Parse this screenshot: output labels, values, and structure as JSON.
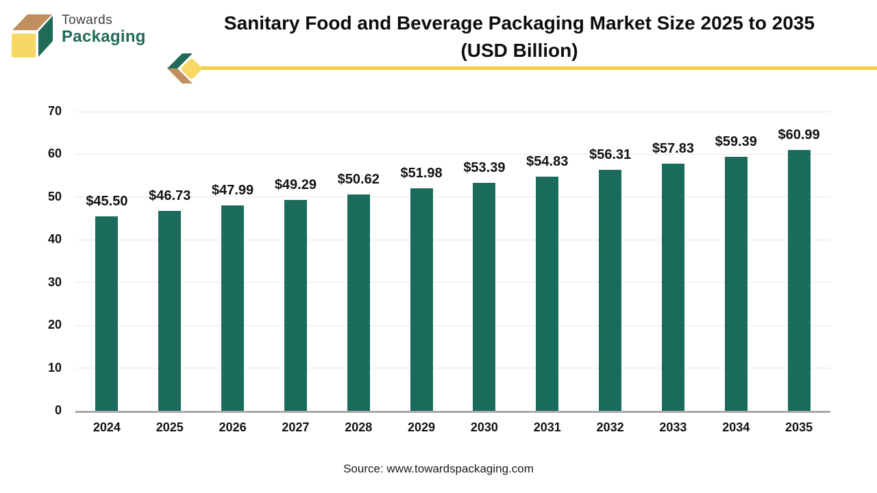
{
  "logo": {
    "line1": "Towards",
    "line2": "Packaging"
  },
  "header": {
    "title_line1": "Sanitary Food and Beverage Packaging Market Size 2025 to 2035",
    "title_line2": "(USD Billion)"
  },
  "footer": {
    "source": "Source: www.towardspackaging.com"
  },
  "colors": {
    "bar": "#1a6b5c",
    "accent_yellow": "#f5ce47",
    "logo_green": "#1f6b57",
    "logo_tan": "#c18e5f",
    "logo_yellow": "#f8d765",
    "grid": "#e8e8e8",
    "axis_line": "#a9a9a9",
    "text": "#111111"
  },
  "chart_data": {
    "type": "bar",
    "title": "Sanitary Food and Beverage Packaging Market Size 2025 to 2035 (USD Billion)",
    "categories": [
      "2024",
      "2025",
      "2026",
      "2027",
      "2028",
      "2029",
      "2030",
      "2031",
      "2032",
      "2033",
      "2034",
      "2035"
    ],
    "values": [
      45.5,
      46.73,
      47.99,
      49.29,
      50.62,
      51.98,
      53.39,
      54.83,
      56.31,
      57.83,
      59.39,
      60.99
    ],
    "value_labels": [
      "$45.50",
      "$46.73",
      "$47.99",
      "$49.29",
      "$50.62",
      "$51.98",
      "$53.39",
      "$54.83",
      "$56.31",
      "$57.83",
      "$59.39",
      "$60.99"
    ],
    "xlabel": "",
    "ylabel": "",
    "ylim": [
      0,
      70
    ],
    "yticks": [
      0,
      10,
      20,
      30,
      40,
      50,
      60,
      70
    ],
    "grid": true,
    "legend": "none",
    "bar_color": "#1a6b5c"
  }
}
